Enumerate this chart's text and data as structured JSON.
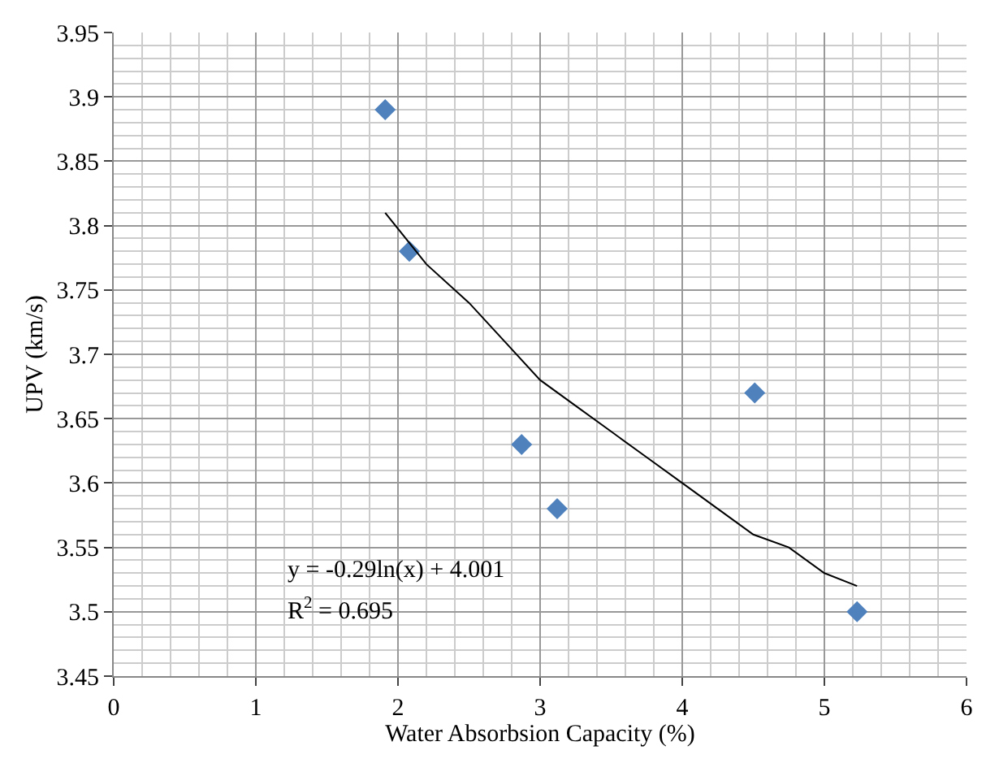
{
  "chart_data": {
    "type": "scatter",
    "xlabel": "Water Absorbsion Capacity (%)",
    "ylabel": "UPV (km/s)",
    "series": [
      {
        "marker": "diamond",
        "color": "#4f81bd",
        "x": [
          1.91,
          2.08,
          2.87,
          3.12,
          4.51,
          5.23
        ],
        "values": [
          3.89,
          3.78,
          3.63,
          3.58,
          3.67,
          3.5
        ]
      },
      {
        "type": "line",
        "marker": "none",
        "color": "#000000",
        "x": [
          1.91,
          2.2,
          2.5,
          2.75,
          3,
          3.25,
          3.5,
          3.75,
          4,
          4.25,
          4.5,
          4.75,
          5,
          5.23
        ],
        "values": [
          3.81,
          3.77,
          3.74,
          3.71,
          3.68,
          3.66,
          3.64,
          3.62,
          3.6,
          3.58,
          3.56,
          3.55,
          3.53,
          3.52
        ]
      }
    ],
    "annotations": [
      "y = -0.29ln(x) + 4.001",
      "R$^{2}$ = 0.695"
    ],
    "xlim": [
      0,
      6
    ],
    "xticks": [
      0,
      1,
      2,
      3,
      4,
      5,
      6
    ],
    "ylim": [
      3.45,
      3.95
    ],
    "yticks": [
      3.45,
      3.5,
      3.55,
      3.6,
      3.65,
      3.7,
      3.75,
      3.8,
      3.85,
      3.9,
      3.95
    ],
    "grid": true
  }
}
